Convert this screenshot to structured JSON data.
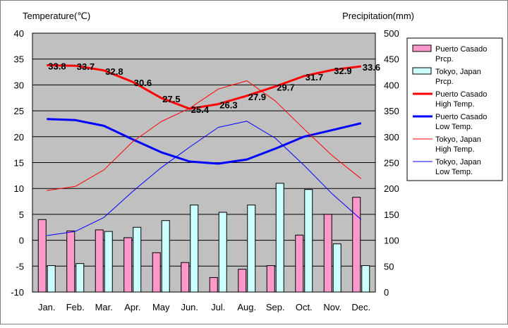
{
  "chart_data": {
    "type": "bar",
    "title": "",
    "left_axis_label": "Temperature(℃)",
    "right_axis_label": "Precipitation(mm)",
    "categories": [
      "Jan.",
      "Feb.",
      "Mar.",
      "Apr.",
      "May",
      "Jun.",
      "Jul.",
      "Aug.",
      "Sep.",
      "Oct.",
      "Nov.",
      "Dec."
    ],
    "ylim_temperature": [
      -10,
      40
    ],
    "ylim_precipitation": [
      0,
      500
    ],
    "yticks_temperature": [
      40,
      35,
      30,
      25,
      20,
      15,
      10,
      5,
      0,
      -5,
      -10
    ],
    "yticks_precipitation": [
      500,
      450,
      400,
      350,
      300,
      250,
      200,
      150,
      100,
      50,
      0
    ],
    "grid": true,
    "plot_background": "#c0c0c0",
    "legend_position": "right",
    "bar_series": [
      {
        "name": "Puerto Casado Prcp.",
        "axis": "precipitation",
        "color": "#ff99cc",
        "values": [
          140,
          118,
          120,
          105,
          76,
          57,
          28,
          44,
          51,
          110,
          150,
          183
        ]
      },
      {
        "name": "Tokyo, Japan Prcp.",
        "axis": "precipitation",
        "color": "#ccffff",
        "values": [
          51,
          55,
          117,
          125,
          138,
          168,
          154,
          168,
          210,
          198,
          93,
          51
        ]
      }
    ],
    "line_series": [
      {
        "name": "Puerto Casado High Temp.",
        "axis": "temperature",
        "color": "#ff0000",
        "width": 3,
        "values": [
          33.8,
          33.7,
          32.8,
          30.6,
          27.5,
          25.4,
          26.3,
          27.9,
          29.7,
          31.7,
          32.9,
          33.6
        ],
        "labels": [
          "33.8",
          "33.7",
          "32.8",
          "30.6",
          "27.5",
          "25.4",
          "26.3",
          "27.9",
          "29.7",
          "31.7",
          "32.9",
          "33.6"
        ]
      },
      {
        "name": "Puerto Casado Low Temp.",
        "axis": "temperature",
        "color": "#0000ff",
        "width": 3,
        "values": [
          23.4,
          23.2,
          22.1,
          19.5,
          17.0,
          15.2,
          14.8,
          15.6,
          17.7,
          20.0,
          21.3,
          22.6
        ]
      },
      {
        "name": "Tokyo, Japan High Temp.",
        "axis": "temperature",
        "color": "#ff0000",
        "width": 1,
        "values": [
          9.6,
          10.4,
          13.6,
          19.0,
          22.9,
          25.5,
          29.2,
          30.8,
          26.9,
          21.5,
          16.3,
          11.9
        ]
      },
      {
        "name": "Tokyo, Japan Low Temp.",
        "axis": "temperature",
        "color": "#0000ff",
        "width": 1,
        "values": [
          0.9,
          1.7,
          4.4,
          9.4,
          14.0,
          18.0,
          21.8,
          23.0,
          19.7,
          14.5,
          8.9,
          4.0
        ]
      }
    ],
    "legend": [
      {
        "kind": "box",
        "color": "#ff99cc",
        "line1": "Puerto Casado",
        "line2": "Prcp."
      },
      {
        "kind": "box",
        "color": "#ccffff",
        "line1": "Tokyo, Japan",
        "line2": "Prcp."
      },
      {
        "kind": "line",
        "color": "#ff0000",
        "width": 3,
        "line1": "Puerto Casado",
        "line2": "High Temp."
      },
      {
        "kind": "line",
        "color": "#0000ff",
        "width": 3,
        "line1": "Puerto Casado",
        "line2": "Low Temp."
      },
      {
        "kind": "line",
        "color": "#ff0000",
        "width": 1,
        "line1": "Tokyo, Japan",
        "line2": "High Temp."
      },
      {
        "kind": "line",
        "color": "#0000ff",
        "width": 1,
        "line1": "Tokyo, Japan",
        "line2": "Low Temp."
      }
    ]
  }
}
